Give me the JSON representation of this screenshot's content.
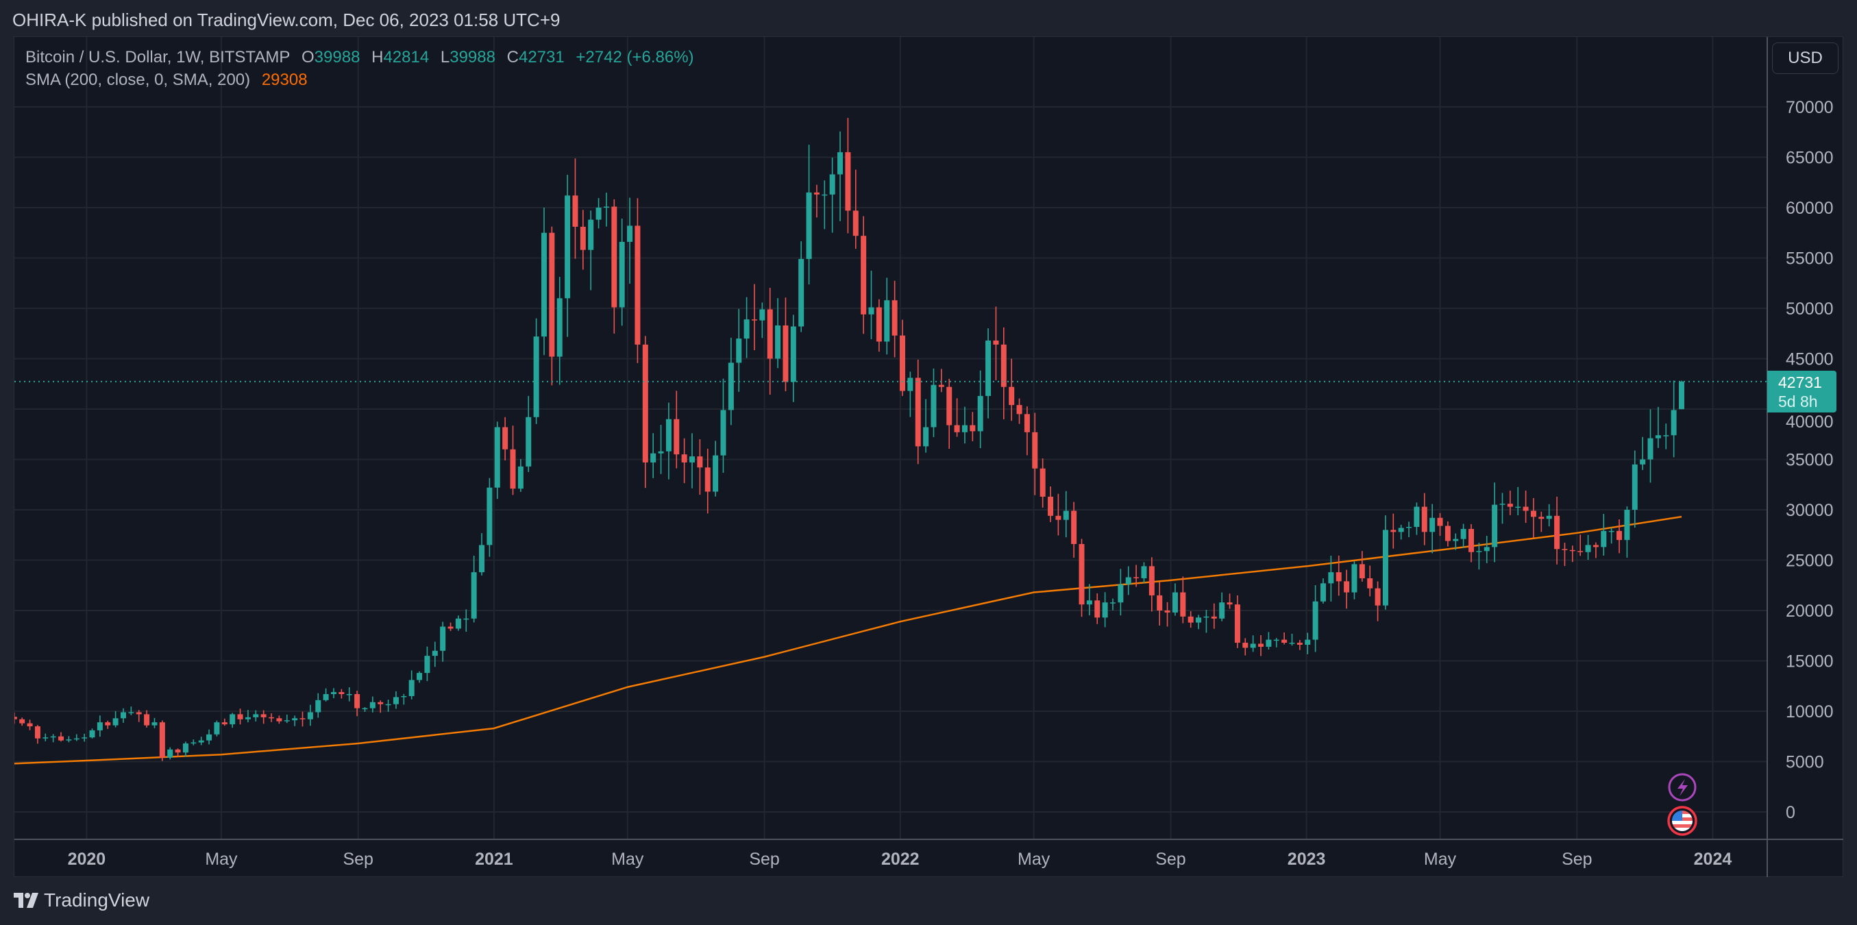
{
  "header": {
    "title": "OHIRA-K published on TradingView.com, Dec 06, 2023 01:58 UTC+9"
  },
  "legend": {
    "symbol": "Bitcoin / U.S. Dollar, 1W, BITSTAMP",
    "o_label": "O",
    "o": "39988",
    "h_label": "H",
    "h": "42814",
    "l_label": "L",
    "l": "39988",
    "c_label": "C",
    "c": "42731",
    "change": "+2742 (+6.86%)",
    "sma_label": "SMA (200, close, 0, SMA, 200)",
    "sma_value": "29308"
  },
  "price_axis": {
    "currency": "USD",
    "last_price": "42731",
    "countdown": "5d 8h"
  },
  "footer": {
    "brand": "TradingView"
  },
  "colors": {
    "up": "#26a69a",
    "down": "#ef5350",
    "sma": "#f57c00",
    "background": "#131722"
  },
  "chart_data": {
    "type": "candlestick",
    "title": "Bitcoin / U.S. Dollar, 1W, BITSTAMP",
    "interval": "1W",
    "start_week": "2019-10-28",
    "ylim": [
      -2000,
      72000
    ],
    "yticks": [
      "0",
      "5000",
      "10000",
      "15000",
      "20000",
      "25000",
      "30000",
      "35000",
      "40000",
      "45000",
      "50000",
      "55000",
      "60000",
      "65000",
      "70000"
    ],
    "xticks": [
      {
        "label": "2020",
        "date": "2020-01-01",
        "bold": true
      },
      {
        "label": "May",
        "date": "2020-05-01"
      },
      {
        "label": "Sep",
        "date": "2020-09-01"
      },
      {
        "label": "2021",
        "date": "2021-01-01",
        "bold": true
      },
      {
        "label": "May",
        "date": "2021-05-01"
      },
      {
        "label": "Sep",
        "date": "2021-09-01"
      },
      {
        "label": "2022",
        "date": "2022-01-01",
        "bold": true
      },
      {
        "label": "May",
        "date": "2022-05-01"
      },
      {
        "label": "Sep",
        "date": "2022-09-01"
      },
      {
        "label": "2023",
        "date": "2023-01-01",
        "bold": true
      },
      {
        "label": "May",
        "date": "2023-05-01"
      },
      {
        "label": "Sep",
        "date": "2023-09-01"
      },
      {
        "label": "2024",
        "date": "2024-01-01",
        "bold": true
      }
    ],
    "first_open": 9450,
    "last_candle": {
      "open": 39988,
      "high": 42814,
      "low": 39988,
      "close": 42731
    },
    "closes": [
      9200,
      8800,
      8500,
      7300,
      7400,
      7500,
      7100,
      7200,
      7300,
      7400,
      8100,
      8900,
      8600,
      9300,
      9900,
      9900,
      9700,
      8600,
      8900,
      5400,
      6200,
      5900,
      6800,
      6900,
      7100,
      7700,
      8900,
      8700,
      9700,
      9200,
      9400,
      9700,
      9400,
      9300,
      9000,
      9100,
      9300,
      9200,
      9900,
      11100,
      11700,
      11900,
      11700,
      11700,
      10300,
      10300,
      10900,
      10700,
      10700,
      11400,
      11500,
      13100,
      13800,
      15500,
      16000,
      18400,
      18200,
      19200,
      19200,
      23800,
      26500,
      32200,
      38200,
      36000,
      32100,
      34300,
      39200,
      47200,
      57500,
      45200,
      51000,
      61200,
      58100,
      55800,
      58800,
      60000,
      60100,
      50100,
      56600,
      58200,
      46400,
      34700,
      35600,
      35800,
      39000,
      35500,
      34700,
      35300,
      34200,
      31800,
      35400,
      39900,
      44600,
      47000,
      48900,
      48800,
      49900,
      45000,
      48300,
      42700,
      48200,
      54900,
      61500,
      61300,
      61300,
      63300,
      65500,
      59700,
      57200,
      49400,
      50100,
      46700,
      50800,
      47300,
      41800,
      43100,
      36300,
      38200,
      42400,
      42200,
      38400,
      37700,
      38400,
      37800,
      41300,
      46800,
      46400,
      42200,
      40400,
      39500,
      37700,
      34100,
      31300,
      29400,
      29000,
      29900,
      26600,
      20600,
      21000,
      19300,
      20800,
      20800,
      22600,
      23300,
      23200,
      24400,
      21500,
      20000,
      19800,
      21800,
      19400,
      18800,
      19300,
      19400,
      19200,
      20800,
      20600,
      16800,
      16300,
      16700,
      16400,
      17100,
      17100,
      16800,
      16800,
      16600,
      17100,
      20900,
      22700,
      23800,
      22900,
      21800,
      24600,
      23200,
      22200,
      20500,
      28000,
      27800,
      28200,
      28300,
      30300,
      27800,
      29200,
      28400,
      26900,
      27100,
      28100,
      25800,
      25900,
      26300,
      30500,
      30600,
      30300,
      30300,
      29900,
      29300,
      29100,
      29400,
      26100,
      26000,
      25900,
      25800,
      26500,
      26300,
      27900,
      27900,
      27000,
      30000,
      34500,
      35000,
      37100,
      37400,
      37400,
      39900,
      42731
    ],
    "sma_200": [
      [
        "2019-10-28",
        4800
      ],
      [
        "2020-01-01",
        5100
      ],
      [
        "2020-05-01",
        5700
      ],
      [
        "2020-09-01",
        6800
      ],
      [
        "2021-01-01",
        8300
      ],
      [
        "2021-05-01",
        12400
      ],
      [
        "2021-09-01",
        15400
      ],
      [
        "2022-01-01",
        18900
      ],
      [
        "2022-05-01",
        21800
      ],
      [
        "2022-09-01",
        23000
      ],
      [
        "2023-01-01",
        24400
      ],
      [
        "2023-05-01",
        26000
      ],
      [
        "2023-09-01",
        27700
      ],
      [
        "2023-12-04",
        29308
      ]
    ]
  }
}
